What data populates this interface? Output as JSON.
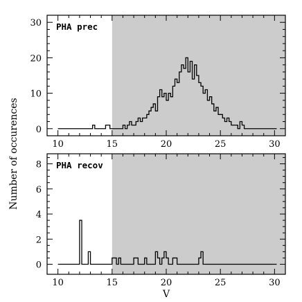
{
  "chart_data": [
    {
      "type": "histogram",
      "panel_label": "PHA prec",
      "xlim": [
        9,
        31
      ],
      "ylim": [
        -2,
        32
      ],
      "xticks": [
        "10",
        "15",
        "20",
        "25",
        "30"
      ],
      "yticks": [
        "0",
        "10",
        "20",
        "30"
      ],
      "shaded_region": [
        15,
        31
      ],
      "shade_color": "#cccccc",
      "bin_width": 0.2,
      "x": [
        10.0,
        13.2,
        13.4,
        13.6,
        14.4,
        14.6,
        14.8,
        15.0,
        15.2,
        15.4,
        15.6,
        15.8,
        16.0,
        16.2,
        16.4,
        16.6,
        16.8,
        17.0,
        17.2,
        17.4,
        17.6,
        17.8,
        18.0,
        18.2,
        18.4,
        18.6,
        18.8,
        19.0,
        19.2,
        19.4,
        19.6,
        19.8,
        20.0,
        20.2,
        20.4,
        20.6,
        20.8,
        21.0,
        21.2,
        21.4,
        21.6,
        21.8,
        22.0,
        22.2,
        22.4,
        22.6,
        22.8,
        23.0,
        23.2,
        23.4,
        23.6,
        23.8,
        24.0,
        24.2,
        24.4,
        24.6,
        24.8,
        25.0,
        25.2,
        25.4,
        25.6,
        25.8,
        26.0,
        26.2,
        26.4,
        26.6,
        26.8,
        27.0,
        27.2,
        27.4,
        30.0
      ],
      "y": [
        0,
        1,
        0,
        0,
        1,
        1,
        0,
        0,
        0,
        0,
        0,
        0,
        1,
        0,
        1,
        2,
        1,
        1,
        2,
        3,
        2,
        3,
        3,
        4,
        5,
        6,
        7,
        5,
        9,
        11,
        9,
        10,
        8,
        10,
        9,
        12,
        14,
        13,
        16,
        18,
        17,
        20,
        16,
        19,
        14,
        18,
        15,
        13,
        12,
        10,
        11,
        8,
        9,
        7,
        5,
        6,
        4,
        4,
        3,
        2,
        3,
        2,
        1,
        1,
        1,
        0,
        2,
        1,
        0,
        0,
        0
      ]
    },
    {
      "type": "histogram",
      "panel_label": "PHA recov",
      "xlabel": "V",
      "xlim": [
        9,
        31
      ],
      "ylim": [
        -0.8,
        8.8
      ],
      "xticks": [
        "10",
        "15",
        "20",
        "25",
        "30"
      ],
      "yticks": [
        "0",
        "2",
        "4",
        "6",
        "8"
      ],
      "shaded_region": [
        15,
        31
      ],
      "shade_color": "#cccccc",
      "bin_width": 0.2,
      "x": [
        10.0,
        12.0,
        12.2,
        12.4,
        12.8,
        13.0,
        13.2,
        15.0,
        15.2,
        15.4,
        15.6,
        15.8,
        16.0,
        16.2,
        17.0,
        17.2,
        17.4,
        17.6,
        18.0,
        18.2,
        18.4,
        18.6,
        19.0,
        19.2,
        19.4,
        19.6,
        19.8,
        20.0,
        20.2,
        20.6,
        20.8,
        21.0,
        21.2,
        23.0,
        23.2,
        23.4,
        30.0
      ],
      "y": [
        0,
        3.5,
        0,
        0,
        1,
        0,
        0,
        0.5,
        0.5,
        0,
        0.5,
        0,
        0,
        0,
        0.5,
        0.5,
        0,
        0,
        0.5,
        0,
        0,
        0,
        1,
        0.5,
        0,
        0.5,
        1,
        0.5,
        0,
        0.5,
        0.5,
        0,
        0,
        0.5,
        1,
        0,
        0
      ]
    }
  ],
  "ylabel": "Number of occurences",
  "xlabel": "V"
}
